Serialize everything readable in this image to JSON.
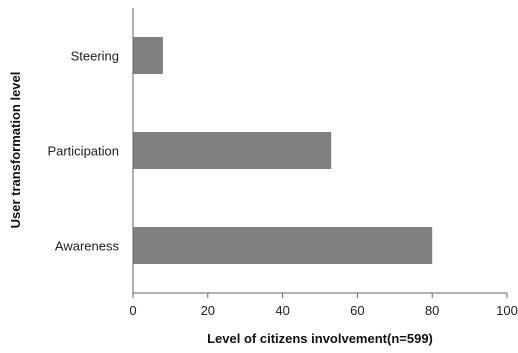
{
  "chart_data": {
    "type": "bar",
    "orientation": "horizontal",
    "categories": [
      "Awareness",
      "Participation",
      "Steering"
    ],
    "values": [
      80,
      53,
      8
    ],
    "xlabel": "Level of citizens involvement(n=599)",
    "ylabel": "User transformation level",
    "xlim": [
      0,
      100
    ],
    "xticks": [
      0,
      20,
      40,
      60,
      80,
      100
    ],
    "xtick_labels": [
      "0",
      "20",
      "40",
      "60",
      "80",
      "100"
    ],
    "grid": false,
    "legend": "none",
    "bar_color": "#808080"
  }
}
